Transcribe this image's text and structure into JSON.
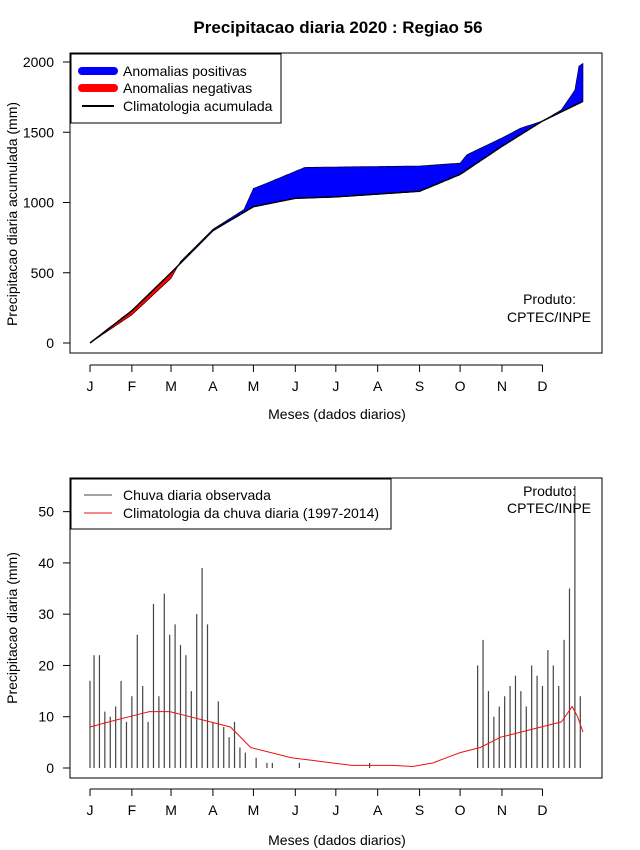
{
  "title": "Precipitacao diaria 2020 : Regiao 56",
  "colors": {
    "positive": "#0000ff",
    "negative": "#ff0000",
    "climatology_line": "#000000",
    "observed_bar": "#444444",
    "climatology_daily": "#ee1111"
  },
  "chart_data": [
    {
      "type": "area",
      "ylabel": "Precipitacao diaria acumulada (mm)",
      "xlabel": "Meses (dados diarios)",
      "xticks": [
        "J",
        "F",
        "M",
        "A",
        "M",
        "J",
        "J",
        "A",
        "S",
        "O",
        "N",
        "D"
      ],
      "xlim": [
        1,
        366
      ],
      "ylim": [
        0,
        2000
      ],
      "yticks": [
        0,
        500,
        1000,
        1500,
        2000
      ],
      "legend": {
        "position": "top-left",
        "entries": [
          "Anomalias positivas",
          "Anomalias negativas",
          "Climatologia acumulada"
        ]
      },
      "annotation": [
        "Produto:",
        "CPTEC/INPE"
      ],
      "series": [
        {
          "name": "Climatologia acumulada",
          "x": [
            1,
            32,
            61,
            92,
            122,
            153,
            183,
            214,
            245,
            275,
            306,
            336,
            366
          ],
          "y": [
            0,
            230,
            500,
            800,
            970,
            1030,
            1040,
            1060,
            1080,
            1200,
            1400,
            1580,
            1720
          ]
        },
        {
          "x": [
            1,
            32,
            61,
            68,
            92,
            115,
            122,
            130,
            160,
            200,
            245,
            266,
            275,
            280,
            306,
            320,
            336,
            350,
            360,
            363,
            366
          ],
          "y": [
            0,
            200,
            460,
            580,
            810,
            950,
            1100,
            1130,
            1250,
            1255,
            1260,
            1275,
            1280,
            1340,
            1460,
            1530,
            1580,
            1660,
            1800,
            1970,
            1990
          ]
        }
      ]
    },
    {
      "type": "bar",
      "ylabel": "Precipitacao diaria (mm)",
      "xlabel": "Meses (dados diarios)",
      "xticks": [
        "J",
        "F",
        "M",
        "A",
        "M",
        "J",
        "J",
        "A",
        "S",
        "O",
        "N",
        "D"
      ],
      "xlim": [
        1,
        366
      ],
      "ylim": [
        0,
        55
      ],
      "yticks": [
        0,
        10,
        20,
        30,
        40,
        50
      ],
      "legend": {
        "position": "top-left",
        "entries": [
          "Chuva diaria observada",
          "Climatologia da chuva diaria (1997-2014)"
        ]
      },
      "annotation": [
        "Produto:",
        "CPTEC/INPE"
      ],
      "series": [
        {
          "name": "Chuva diaria observada",
          "x": [
            1,
            4,
            8,
            12,
            16,
            20,
            24,
            28,
            32,
            36,
            40,
            44,
            48,
            52,
            56,
            60,
            64,
            68,
            72,
            76,
            80,
            84,
            88,
            92,
            96,
            100,
            104,
            108,
            112,
            116,
            120,
            124,
            128,
            132,
            136,
            140,
            144,
            148,
            152,
            156,
            160,
            164,
            168,
            172,
            176,
            180,
            184,
            188,
            192,
            196,
            200,
            204,
            208,
            212,
            216,
            220,
            224,
            228,
            232,
            236,
            240,
            244,
            248,
            252,
            256,
            260,
            264,
            268,
            272,
            276,
            280,
            284,
            288,
            292,
            296,
            300,
            304,
            308,
            312,
            316,
            320,
            324,
            328,
            332,
            336,
            340,
            344,
            348,
            352,
            356,
            360,
            364,
            366
          ],
          "y": [
            17,
            22,
            22,
            11,
            10,
            12,
            17,
            9,
            14,
            26,
            16,
            9,
            32,
            14,
            34,
            26,
            28,
            24,
            22,
            15,
            30,
            39,
            28,
            9,
            13,
            8,
            6,
            9,
            4,
            3,
            0,
            2,
            0,
            1,
            1,
            0,
            0,
            0,
            0,
            1,
            0,
            0,
            0,
            0,
            0,
            0,
            0,
            0,
            0,
            0,
            0,
            0,
            1,
            0,
            0,
            0,
            0,
            0,
            0,
            0,
            0,
            0,
            0,
            0,
            0,
            0,
            0,
            0,
            0,
            0,
            0,
            0,
            20,
            25,
            15,
            10,
            12,
            14,
            16,
            18,
            15,
            12,
            20,
            18,
            16,
            23,
            20,
            16,
            25,
            35,
            55,
            14,
            0
          ]
        },
        {
          "name": "Climatologia da chuva diaria (1997-2014)",
          "x": [
            1,
            15,
            30,
            45,
            60,
            75,
            90,
            105,
            120,
            135,
            150,
            165,
            180,
            195,
            210,
            225,
            240,
            255,
            265,
            275,
            290,
            305,
            320,
            335,
            350,
            358,
            362,
            366
          ],
          "y": [
            8,
            9,
            10,
            11,
            11,
            10,
            9,
            8,
            4,
            3,
            2,
            1.5,
            1,
            0.5,
            0.5,
            0.5,
            0.3,
            1,
            2,
            3,
            4,
            6,
            7,
            8,
            9,
            12,
            10,
            7
          ]
        }
      ]
    }
  ]
}
